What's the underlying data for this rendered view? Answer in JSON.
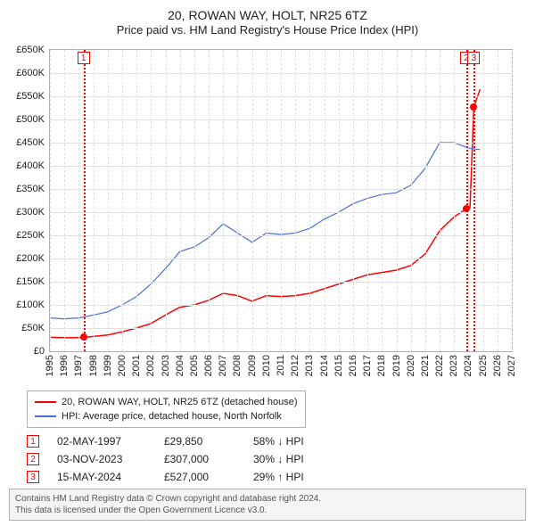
{
  "title": {
    "line1": "20, ROWAN WAY, HOLT, NR25 6TZ",
    "line2": "Price paid vs. HM Land Registry's House Price Index (HPI)"
  },
  "chart": {
    "type": "line",
    "x_axis": {
      "min": 1995,
      "max": 2027,
      "ticks": [
        1995,
        1996,
        1997,
        1998,
        1999,
        2000,
        2001,
        2002,
        2003,
        2004,
        2005,
        2006,
        2007,
        2008,
        2009,
        2010,
        2011,
        2012,
        2013,
        2014,
        2015,
        2016,
        2017,
        2018,
        2019,
        2020,
        2021,
        2022,
        2023,
        2024,
        2025,
        2026,
        2027
      ],
      "label_fontsize": 11
    },
    "y_axis": {
      "min": 0,
      "max": 650000,
      "ticks": [
        0,
        50000,
        100000,
        150000,
        200000,
        250000,
        300000,
        350000,
        400000,
        450000,
        500000,
        550000,
        600000,
        650000
      ],
      "tick_labels": [
        "£0",
        "£50K",
        "£100K",
        "£150K",
        "£200K",
        "£250K",
        "£300K",
        "£350K",
        "£400K",
        "£450K",
        "£500K",
        "£550K",
        "£600K",
        "£650K"
      ],
      "label_fontsize": 11
    },
    "background_color": "#ffffff",
    "grid_color": "#e0e0e0",
    "border_color": "#b0b0b0",
    "series": [
      {
        "name": "price_paid",
        "label": "20, ROWAN WAY, HOLT, NR25 6TZ (detached house)",
        "color": "#ff0000",
        "line_width": 1.5,
        "points": [
          [
            1995.0,
            30000
          ],
          [
            1996.5,
            29000
          ],
          [
            1997.33,
            29850
          ],
          [
            1998.0,
            32000
          ],
          [
            1999.0,
            35000
          ],
          [
            2000.0,
            42000
          ],
          [
            2001.0,
            50000
          ],
          [
            2002.0,
            60000
          ],
          [
            2003.0,
            78000
          ],
          [
            2004.0,
            95000
          ],
          [
            2005.0,
            100000
          ],
          [
            2006.0,
            110000
          ],
          [
            2007.0,
            125000
          ],
          [
            2008.0,
            120000
          ],
          [
            2009.0,
            108000
          ],
          [
            2010.0,
            120000
          ],
          [
            2011.0,
            118000
          ],
          [
            2012.0,
            120000
          ],
          [
            2013.0,
            125000
          ],
          [
            2014.0,
            135000
          ],
          [
            2015.0,
            145000
          ],
          [
            2016.0,
            155000
          ],
          [
            2017.0,
            165000
          ],
          [
            2018.0,
            170000
          ],
          [
            2019.0,
            175000
          ],
          [
            2020.0,
            185000
          ],
          [
            2021.0,
            210000
          ],
          [
            2022.0,
            260000
          ],
          [
            2023.0,
            290000
          ],
          [
            2023.84,
            307000
          ],
          [
            2024.1,
            310000
          ],
          [
            2024.37,
            527000
          ],
          [
            2024.8,
            565000
          ]
        ]
      },
      {
        "name": "hpi",
        "label": "HPI: Average price, detached house, North Norfolk",
        "color": "#4a6fd8",
        "line_width": 1.2,
        "points": [
          [
            1995.0,
            72000
          ],
          [
            1996.0,
            70000
          ],
          [
            1997.0,
            72000
          ],
          [
            1998.0,
            78000
          ],
          [
            1999.0,
            85000
          ],
          [
            2000.0,
            100000
          ],
          [
            2001.0,
            118000
          ],
          [
            2002.0,
            145000
          ],
          [
            2003.0,
            178000
          ],
          [
            2004.0,
            215000
          ],
          [
            2005.0,
            225000
          ],
          [
            2006.0,
            245000
          ],
          [
            2007.0,
            275000
          ],
          [
            2008.0,
            255000
          ],
          [
            2009.0,
            235000
          ],
          [
            2010.0,
            255000
          ],
          [
            2011.0,
            252000
          ],
          [
            2012.0,
            255000
          ],
          [
            2013.0,
            265000
          ],
          [
            2014.0,
            285000
          ],
          [
            2015.0,
            300000
          ],
          [
            2016.0,
            318000
          ],
          [
            2017.0,
            330000
          ],
          [
            2018.0,
            338000
          ],
          [
            2019.0,
            342000
          ],
          [
            2020.0,
            358000
          ],
          [
            2021.0,
            395000
          ],
          [
            2022.0,
            450000
          ],
          [
            2023.0,
            450000
          ],
          [
            2024.0,
            438000
          ],
          [
            2024.8,
            435000
          ]
        ]
      }
    ],
    "markers": [
      {
        "n": "1",
        "year": 1997.33,
        "value": 29850
      },
      {
        "n": "2",
        "year": 2023.84,
        "value": 307000
      },
      {
        "n": "3",
        "year": 2024.37,
        "value": 527000
      }
    ],
    "marker_color": "#ff0000"
  },
  "legend": {
    "items": [
      {
        "color": "#ff0000",
        "label": "20, ROWAN WAY, HOLT, NR25 6TZ (detached house)"
      },
      {
        "color": "#4a6fd8",
        "label": "HPI: Average price, detached house, North Norfolk"
      }
    ]
  },
  "sales": [
    {
      "n": "1",
      "date": "02-MAY-1997",
      "price": "£29,850",
      "delta": "58% ↓ HPI"
    },
    {
      "n": "2",
      "date": "03-NOV-2023",
      "price": "£307,000",
      "delta": "30% ↓ HPI"
    },
    {
      "n": "3",
      "date": "15-MAY-2024",
      "price": "£527,000",
      "delta": "29% ↑ HPI"
    }
  ],
  "footer": {
    "line1": "Contains HM Land Registry data © Crown copyright and database right 2024.",
    "line2": "This data is licensed under the Open Government Licence v3.0."
  }
}
